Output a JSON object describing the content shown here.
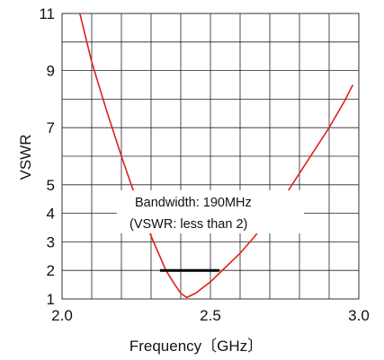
{
  "chart_data": {
    "type": "line",
    "xlabel": "Frequency〔GHz〕",
    "ylabel": "VSWR",
    "xlim": [
      2.0,
      3.0
    ],
    "ylim": [
      1,
      11
    ],
    "x_ticks": [
      "2.0",
      "2.5",
      "3.0"
    ],
    "y_ticks": [
      {
        "value": 1,
        "label": "1"
      },
      {
        "value": 2,
        "label": "2"
      },
      {
        "value": 3,
        "label": "3"
      },
      {
        "value": 4,
        "label": "4"
      },
      {
        "value": 5,
        "label": "5"
      },
      {
        "value": 7,
        "label": "7"
      },
      {
        "value": 9,
        "label": "9"
      },
      {
        "value": 11,
        "label": "11"
      }
    ],
    "grid": true,
    "series": [
      {
        "color": "#e0201c",
        "x": [
          2.06,
          2.1,
          2.15,
          2.2,
          2.25,
          2.3,
          2.35,
          2.38,
          2.4,
          2.42,
          2.45,
          2.5,
          2.55,
          2.6,
          2.65,
          2.7,
          2.75,
          2.8,
          2.85,
          2.9,
          2.95,
          2.98
        ],
        "y": [
          11.0,
          9.3,
          7.6,
          6.0,
          4.5,
          3.2,
          2.0,
          1.5,
          1.2,
          1.05,
          1.2,
          1.6,
          2.1,
          2.6,
          3.2,
          3.9,
          4.6,
          5.4,
          6.2,
          7.0,
          7.9,
          8.5
        ]
      }
    ],
    "bandwidth_line": {
      "x_start": 2.33,
      "x_end": 2.53,
      "y": 2,
      "color": "#000000"
    },
    "annotation": {
      "line1": "Bandwidth: 190MHz",
      "line2": "(VSWR: less than 2)"
    }
  }
}
